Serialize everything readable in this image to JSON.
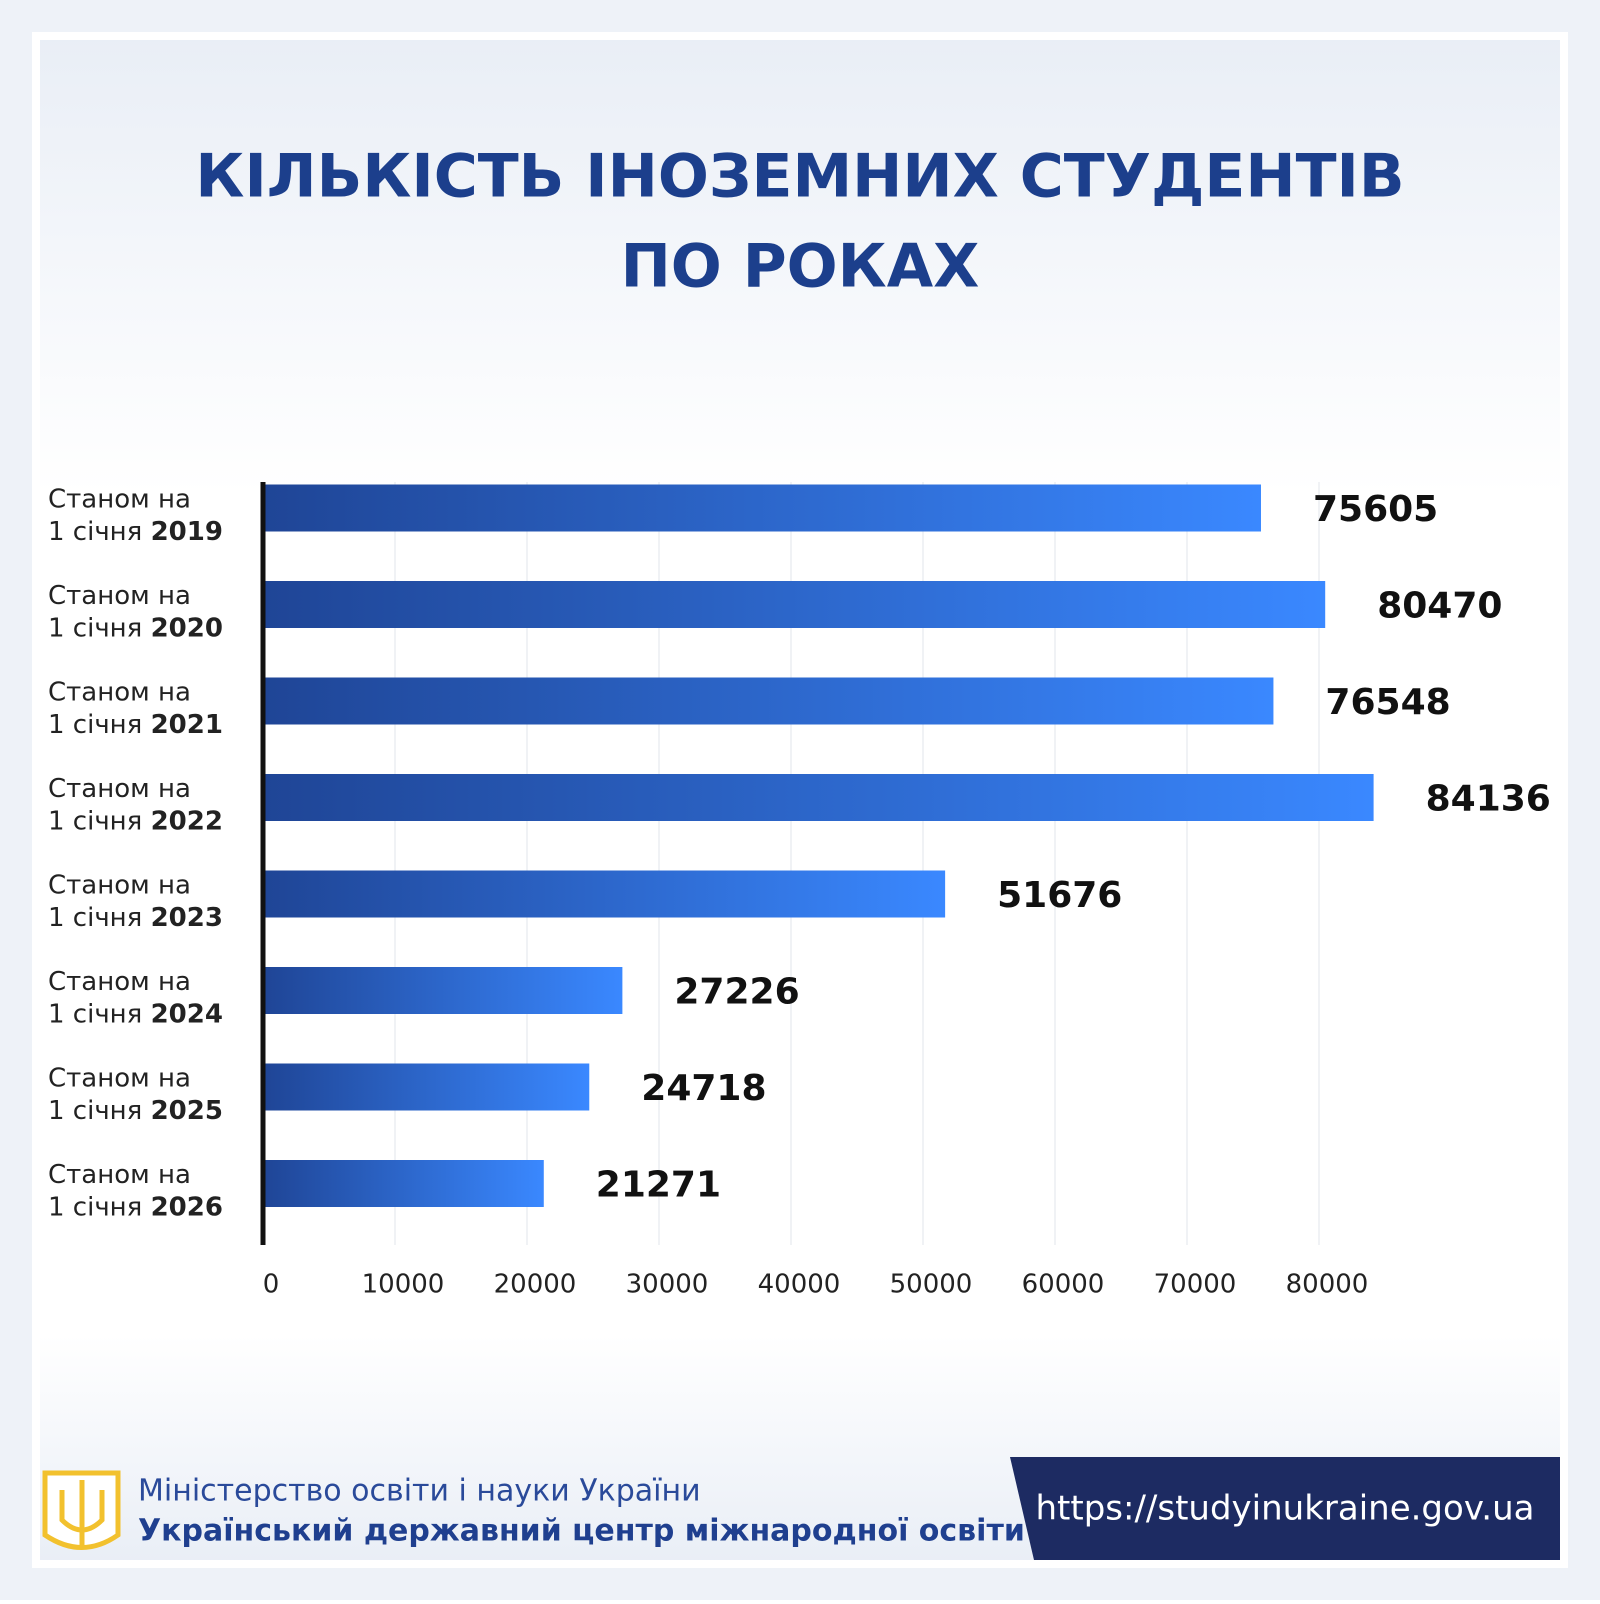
{
  "chart_data": {
    "type": "hbar",
    "title": [
      "КІЛЬКІСТЬ ІНОЗЕМНИХ СТУДЕНТІВ",
      "ПО РОКАХ"
    ],
    "category_prefix": [
      "Станом на",
      "1 січня"
    ],
    "categories": [
      "2019",
      "2020",
      "2021",
      "2022",
      "2023",
      "2024",
      "2025",
      "2026"
    ],
    "values": [
      75605,
      80470,
      76548,
      84136,
      51676,
      27226,
      24718,
      21271
    ],
    "color": [
      "#1f4596",
      "#3a88ff"
    ],
    "xlim": [
      0,
      90000
    ],
    "xticks": [
      0,
      10000,
      20000,
      30000,
      40000,
      50000,
      60000,
      70000,
      80000
    ],
    "grid": true
  },
  "footer": {
    "ministry": "Міністерство освіти і науки України",
    "center": "Український державний центр міжнародної освіти",
    "url": "https://studyinukraine.gov.ua"
  }
}
